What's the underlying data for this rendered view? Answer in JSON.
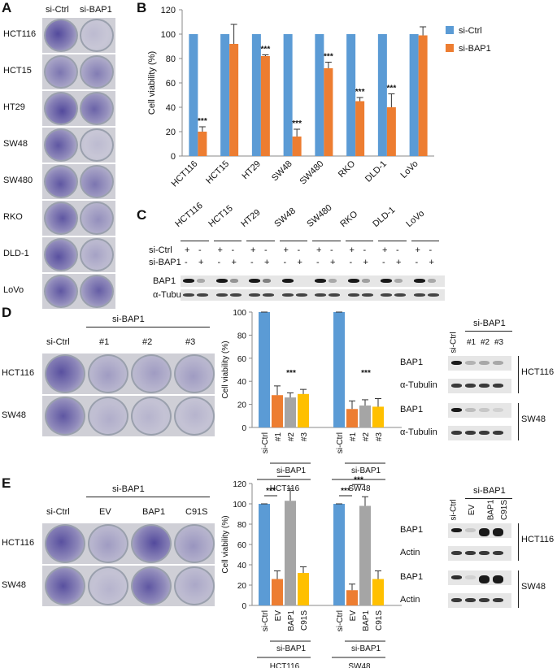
{
  "panels": {
    "A": {
      "label": "A",
      "columns": [
        "si-Ctrl",
        "si-BAP1"
      ],
      "rows": [
        "HCT116",
        "HCT15",
        "HT29",
        "SW48",
        "SW480",
        "RKO",
        "DLD-1",
        "LoVo"
      ]
    },
    "C": {
      "label": "C",
      "cell_lines": [
        "HCT116",
        "HCT15",
        "HT29",
        "SW48",
        "SW480",
        "RKO",
        "DLD-1",
        "LoVo"
      ],
      "row_labels": [
        "si-Ctrl",
        "si-BAP1"
      ],
      "si_ctrl_marks": [
        "+",
        "-"
      ],
      "si_bap1_marks": [
        "-",
        "+"
      ],
      "blot_labels": [
        "BAP1",
        "α-Tubulin"
      ]
    },
    "D": {
      "label": "D",
      "header": "si-BAP1",
      "columns": [
        "si-Ctrl",
        "#1",
        "#2",
        "#3"
      ],
      "rows": [
        "HCT116",
        "SW48"
      ],
      "blot_header": "si-BAP1",
      "blot_columns": [
        "si-Ctrl",
        "#1",
        "#2",
        "#3"
      ],
      "blot_labels": [
        "BAP1",
        "α-Tubulin",
        "BAP1",
        "α-Tubulin"
      ],
      "blot_groups": [
        "HCT116",
        "SW48"
      ]
    },
    "E": {
      "label": "E",
      "header": "si-BAP1",
      "columns": [
        "si-Ctrl",
        "EV",
        "BAP1",
        "C91S"
      ],
      "rows": [
        "HCT116",
        "SW48"
      ],
      "blot_header": "si-BAP1",
      "blot_columns": [
        "si-Ctrl",
        "EV",
        "BAP1",
        "C91S"
      ],
      "blot_labels": [
        "BAP1",
        "Actin",
        "BAP1",
        "Actin"
      ],
      "blot_groups": [
        "HCT116",
        "SW48"
      ]
    }
  },
  "colors": {
    "blue": "#5b9bd5",
    "orange": "#ed7d31",
    "gray": "#a5a5a5",
    "yellow": "#ffc000"
  },
  "chart_data": [
    {
      "id": "B",
      "label": "B",
      "type": "bar",
      "ylabel": "Cell viability (%)",
      "ylim": [
        0,
        120
      ],
      "yticks": [
        0,
        20,
        40,
        60,
        80,
        100,
        120
      ],
      "categories": [
        "HCT116",
        "HCT15",
        "HT29",
        "SW48",
        "SW480",
        "RKO",
        "DLD-1",
        "LoVo"
      ],
      "series": [
        {
          "name": "si-Ctrl",
          "color": "#5b9bd5",
          "values": [
            100,
            100,
            100,
            100,
            100,
            100,
            100,
            100
          ],
          "errors": [
            0,
            0,
            0,
            0,
            0,
            0,
            0,
            0
          ]
        },
        {
          "name": "si-BAP1",
          "color": "#ed7d31",
          "values": [
            20,
            92,
            82,
            16,
            72,
            45,
            40,
            99
          ],
          "errors": [
            4,
            16,
            1,
            6,
            5,
            3,
            11,
            7
          ]
        }
      ],
      "significance": [
        "***",
        "",
        "***",
        "***",
        "***",
        "***",
        "***",
        ""
      ],
      "legend": [
        "si-Ctrl",
        "si-BAP1"
      ],
      "legend_position": "top-right"
    },
    {
      "id": "D",
      "type": "bar",
      "ylabel": "Cell viability (%)",
      "ylim": [
        0,
        100
      ],
      "yticks": [
        0,
        20,
        40,
        60,
        80,
        100
      ],
      "groups": [
        {
          "name": "HCT116",
          "bars": [
            "si-Ctrl",
            "#1",
            "#2",
            "#3"
          ],
          "values": [
            100,
            28,
            26,
            29
          ],
          "errors": [
            0,
            8,
            4,
            4
          ],
          "colors": [
            "#5b9bd5",
            "#ed7d31",
            "#a5a5a5",
            "#ffc000"
          ],
          "significance": "***",
          "sub_label": "si-BAP1"
        },
        {
          "name": "SW48",
          "bars": [
            "si-Ctrl",
            "#1",
            "#2",
            "#3"
          ],
          "values": [
            100,
            16,
            19,
            18
          ],
          "errors": [
            0,
            7,
            5,
            7
          ],
          "colors": [
            "#5b9bd5",
            "#ed7d31",
            "#a5a5a5",
            "#ffc000"
          ],
          "significance": "***",
          "sub_label": "si-BAP1"
        }
      ]
    },
    {
      "id": "E",
      "type": "bar",
      "ylabel": "Cell viability (%)",
      "ylim": [
        0,
        120
      ],
      "yticks": [
        0,
        20,
        40,
        60,
        80,
        100,
        120
      ],
      "groups": [
        {
          "name": "HCT116",
          "bars": [
            "si-Ctrl",
            "EV",
            "BAP1",
            "C91S"
          ],
          "values": [
            100,
            26,
            103,
            32
          ],
          "errors": [
            0,
            8,
            12,
            6
          ],
          "colors": [
            "#5b9bd5",
            "#ed7d31",
            "#a5a5a5",
            "#ffc000"
          ],
          "brackets": [
            "***",
            "***"
          ],
          "sub_label": "si-BAP1"
        },
        {
          "name": "SW48",
          "bars": [
            "si-Ctrl",
            "EV",
            "BAP1",
            "C91S"
          ],
          "values": [
            100,
            15,
            98,
            26
          ],
          "errors": [
            0,
            6,
            9,
            8
          ],
          "colors": [
            "#5b9bd5",
            "#ed7d31",
            "#a5a5a5",
            "#ffc000"
          ],
          "brackets": [
            "***",
            "***"
          ],
          "sub_label": "si-BAP1"
        }
      ]
    }
  ]
}
